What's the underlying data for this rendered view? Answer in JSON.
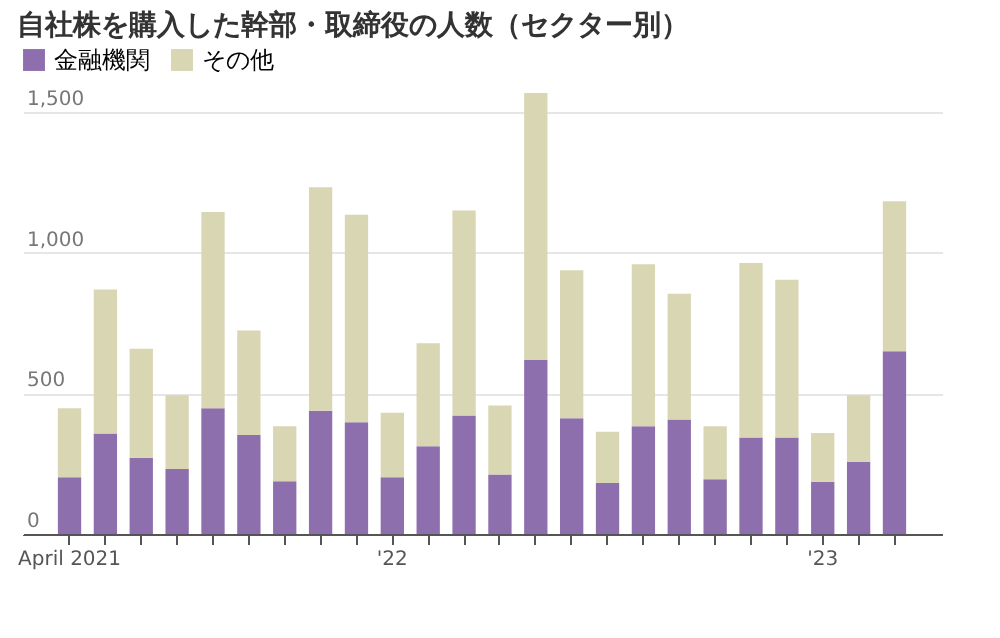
{
  "chart_data": {
    "type": "bar",
    "title": "自社株を購入した幹部・取締役の人数（セクター別）",
    "categories": [
      "April 2021",
      null,
      null,
      null,
      null,
      null,
      null,
      null,
      null,
      "'22",
      null,
      null,
      null,
      null,
      null,
      null,
      null,
      null,
      null,
      null,
      null,
      "'23",
      null,
      null
    ],
    "series": [
      {
        "name": "金融機関",
        "color": "#8e6fae",
        "values": [
          202,
          357,
          271,
          231,
          447,
          352,
          188,
          438,
          397,
          202,
          312,
          421,
          212,
          619,
          412,
          181,
          383,
          407,
          195,
          343,
          343,
          186,
          257,
          650
        ]
      },
      {
        "name": "その他",
        "color": "#d9d6b4",
        "values": [
          245,
          512,
          388,
          262,
          698,
          372,
          195,
          795,
          738,
          229,
          366,
          729,
          245,
          949,
          526,
          183,
          576,
          447,
          188,
          621,
          561,
          173,
          236,
          533
        ]
      }
    ],
    "stacked": true,
    "ylim": [
      0,
      1600
    ],
    "yticks": [
      0,
      {
        "value": 500,
        "label": "500"
      },
      {
        "value": 1000,
        "label": "1,000"
      },
      {
        "value": 1500,
        "label": "1,500"
      }
    ],
    "grid": "y",
    "legend": "top left"
  }
}
